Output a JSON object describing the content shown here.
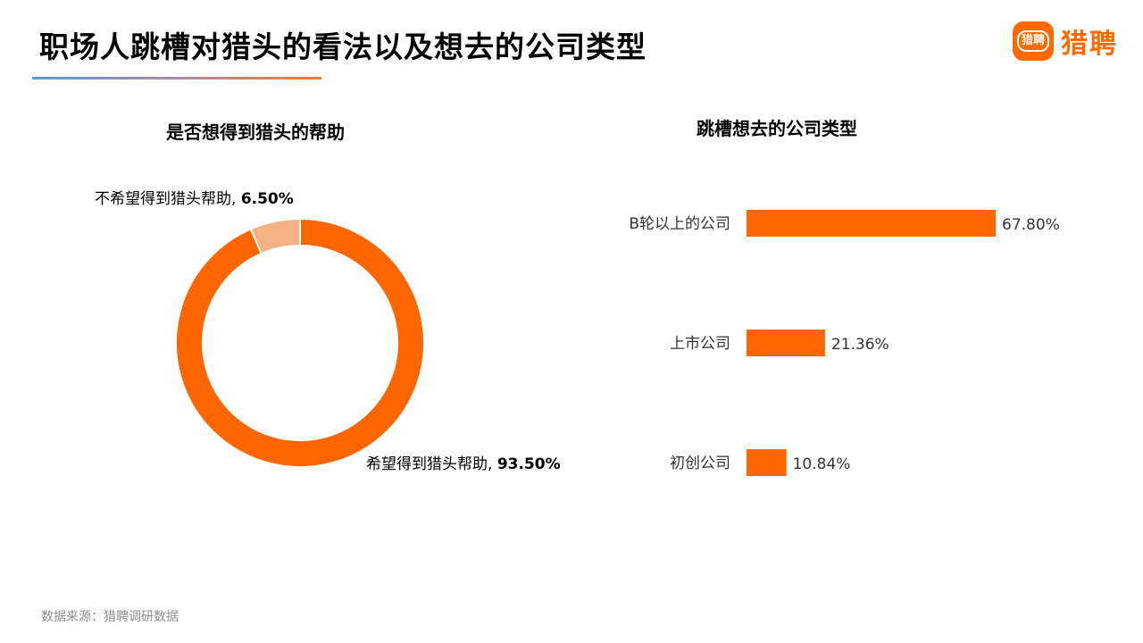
{
  "header": {
    "title": "职场人跳槽对猎头的看法以及想去的公司类型",
    "brand_icon_text": "猎聘",
    "brand_name": "猎聘"
  },
  "colors": {
    "accent": "#ff6600",
    "secondary": "#f4b183",
    "text": "#000000",
    "muted": "#8c8c8c"
  },
  "chart_data": [
    {
      "type": "pie",
      "title": "是否想得到猎头的帮助",
      "donut": true,
      "categories": [
        "希望得到猎头帮助",
        "不希望得到猎头帮助"
      ],
      "values": [
        93.5,
        6.5
      ],
      "labels": [
        "93.50%",
        "6.50%"
      ],
      "colors": [
        "#ff6600",
        "#f4b183"
      ]
    },
    {
      "type": "bar",
      "orientation": "horizontal",
      "title": "跳槽想去的公司类型",
      "categories": [
        "B轮以上的公司",
        "上市公司",
        "初创公司"
      ],
      "values": [
        67.8,
        21.36,
        10.84
      ],
      "labels": [
        "67.80%",
        "21.36%",
        "10.84%"
      ],
      "color": "#ff6600"
    }
  ],
  "footer": {
    "source": "数据来源：猎聘调研数据"
  }
}
